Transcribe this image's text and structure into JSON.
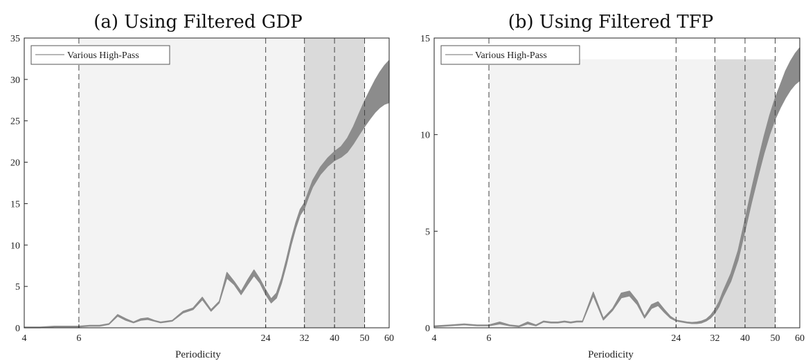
{
  "chart_data": [
    {
      "type": "line",
      "title": "(a) Using Filtered GDP",
      "xlabel": "Periodicity",
      "ylabel": "",
      "xscale": "log",
      "xlim": [
        4,
        60
      ],
      "ylim": [
        0,
        35
      ],
      "xticks": [
        4,
        6,
        24,
        32,
        40,
        50,
        60
      ],
      "yticks": [
        0,
        5,
        10,
        15,
        20,
        25,
        30,
        35
      ],
      "grid": false,
      "legend": {
        "position": "top-left",
        "entries": [
          "Various High-Pass"
        ]
      },
      "shaded_regions": [
        {
          "from": 6,
          "to": 32,
          "color": "#f3f3f3",
          "ymax": 35
        },
        {
          "from": 32,
          "to": 50,
          "color": "#dadada",
          "ymax": 35
        }
      ],
      "vlines": [
        6,
        24,
        32,
        40,
        50
      ],
      "series": [
        {
          "name": "Various High-Pass",
          "color": "#8c8c8c",
          "x": [
            4,
            4.5,
            5,
            5.5,
            6,
            6.5,
            7,
            7.5,
            8,
            8.5,
            9,
            9.5,
            10,
            10.5,
            11,
            11.5,
            12,
            13,
            14,
            15,
            16,
            17,
            18,
            19,
            20,
            21,
            22,
            23,
            24,
            25,
            26,
            27,
            28,
            29,
            30,
            31,
            32,
            33,
            34,
            36,
            38,
            40,
            42,
            44,
            46,
            48,
            50,
            52,
            54,
            56,
            58,
            60
          ],
          "lower": [
            0,
            0,
            0.1,
            0.1,
            0.1,
            0.2,
            0.2,
            0.4,
            1.4,
            0.9,
            0.6,
            0.9,
            1.0,
            0.8,
            0.6,
            0.7,
            0.8,
            1.8,
            2.2,
            3.4,
            2.0,
            3.0,
            6.0,
            5.2,
            4.0,
            5.2,
            6.3,
            5.4,
            4.0,
            3.0,
            3.6,
            5.4,
            7.6,
            10.0,
            12.0,
            13.6,
            14.4,
            15.8,
            17.0,
            18.5,
            19.5,
            20.2,
            20.6,
            21.2,
            22.2,
            23.3,
            24.3,
            25.2,
            26.0,
            26.6,
            27.0,
            27.2
          ],
          "upper": [
            0.1,
            0.1,
            0.2,
            0.2,
            0.2,
            0.3,
            0.3,
            0.5,
            1.6,
            1.1,
            0.7,
            1.1,
            1.2,
            0.9,
            0.7,
            0.8,
            0.9,
            2.0,
            2.4,
            3.7,
            2.2,
            3.2,
            6.7,
            5.6,
            4.4,
            5.8,
            7.0,
            5.9,
            4.6,
            3.5,
            4.2,
            6.0,
            8.3,
            10.7,
            12.7,
            14.3,
            15.1,
            16.5,
            17.8,
            19.4,
            20.5,
            21.3,
            21.9,
            22.9,
            24.3,
            25.9,
            27.4,
            28.7,
            29.9,
            30.9,
            31.7,
            32.3
          ]
        }
      ]
    },
    {
      "type": "line",
      "title": "(b) Using Filtered TFP",
      "xlabel": "Periodicity",
      "ylabel": "",
      "xscale": "log",
      "xlim": [
        4,
        60
      ],
      "ylim": [
        0,
        15
      ],
      "xticks": [
        4,
        6,
        24,
        32,
        40,
        50,
        60
      ],
      "yticks": [
        0,
        5,
        10,
        15
      ],
      "grid": false,
      "legend": {
        "position": "top-left",
        "entries": [
          "Various High-Pass"
        ]
      },
      "shaded_regions": [
        {
          "from": 6,
          "to": 32,
          "color": "#f3f3f3",
          "ymax": 13.9
        },
        {
          "from": 32,
          "to": 50,
          "color": "#dadada",
          "ymax": 13.9
        }
      ],
      "vlines": [
        6,
        24,
        32,
        40,
        50
      ],
      "series": [
        {
          "name": "Various High-Pass",
          "color": "#8c8c8c",
          "x": [
            4,
            4.5,
            5,
            5.5,
            6,
            6.5,
            7,
            7.5,
            8,
            8.5,
            9,
            9.5,
            10,
            10.5,
            11,
            11.5,
            12,
            13,
            14,
            15,
            16,
            17,
            18,
            19,
            20,
            21,
            22,
            23,
            24,
            25,
            26,
            27,
            28,
            29,
            30,
            31,
            32,
            33,
            34,
            36,
            38,
            40,
            42,
            44,
            46,
            48,
            50,
            52,
            54,
            56,
            58,
            60
          ],
          "lower": [
            0.05,
            0.1,
            0.15,
            0.1,
            0.1,
            0.2,
            0.1,
            0.05,
            0.2,
            0.1,
            0.3,
            0.25,
            0.25,
            0.3,
            0.25,
            0.3,
            0.3,
            1.65,
            0.4,
            0.9,
            1.55,
            1.65,
            1.2,
            0.5,
            1.0,
            1.15,
            0.8,
            0.5,
            0.35,
            0.3,
            0.25,
            0.22,
            0.22,
            0.25,
            0.35,
            0.5,
            0.75,
            1.1,
            1.6,
            2.4,
            3.5,
            5.0,
            6.5,
            7.8,
            9.0,
            10.0,
            10.8,
            11.4,
            11.9,
            12.3,
            12.6,
            12.8
          ],
          "upper": [
            0.1,
            0.15,
            0.2,
            0.15,
            0.15,
            0.3,
            0.15,
            0.1,
            0.3,
            0.15,
            0.35,
            0.3,
            0.3,
            0.35,
            0.3,
            0.35,
            0.35,
            1.85,
            0.5,
            1.0,
            1.8,
            1.9,
            1.4,
            0.6,
            1.2,
            1.35,
            0.95,
            0.6,
            0.4,
            0.35,
            0.3,
            0.28,
            0.3,
            0.35,
            0.45,
            0.65,
            0.95,
            1.35,
            1.9,
            2.8,
            4.0,
            5.6,
            7.2,
            8.6,
            9.9,
            11.0,
            11.9,
            12.6,
            13.3,
            13.8,
            14.2,
            14.5
          ]
        }
      ]
    }
  ]
}
